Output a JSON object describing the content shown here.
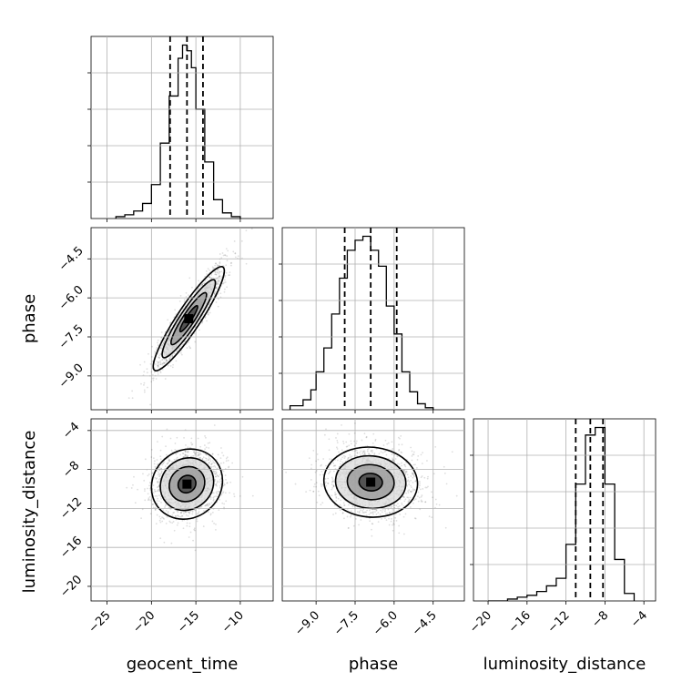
{
  "chart_data": {
    "type": "corner",
    "parameters": [
      "geocent_time",
      "phase",
      "luminosity_distance"
    ],
    "ranges": {
      "geocent_time": [
        -26.8,
        -6.3
      ],
      "phase": [
        -10.3,
        -3.3
      ],
      "luminosity_distance": [
        -21.5,
        -2.8
      ]
    },
    "ticks": {
      "geocent_time": {
        "values": [
          -25,
          -20,
          -15,
          -10
        ],
        "labels": [
          "−25",
          "−20",
          "−15",
          "−10"
        ]
      },
      "phase": {
        "values": [
          -9.0,
          -7.5,
          -6.0,
          -4.5
        ],
        "labels": [
          "−9.0",
          "−7.5",
          "−6.0",
          "−4.5"
        ]
      },
      "luminosity_distance": {
        "values": [
          -20,
          -16,
          -12,
          -8,
          -4
        ],
        "labels": [
          "−20",
          "−16",
          "−12",
          "−8",
          "−4"
        ]
      }
    },
    "histograms": {
      "geocent_time": {
        "bin_edges": [
          -24.0,
          -23.0,
          -22.0,
          -21.0,
          -20.0,
          -19.0,
          -18.0,
          -17.0,
          -16.5,
          -16.0,
          -15.5,
          -15.0,
          -14.0,
          -13.0,
          -12.0,
          -11.0,
          -10.0
        ],
        "counts": [
          1,
          2,
          4,
          8,
          18,
          40,
          65,
          85,
          92,
          89,
          80,
          58,
          30,
          10,
          3,
          1
        ],
        "quantiles": [
          -17.9,
          -16.0,
          -14.2
        ]
      },
      "phase": {
        "bin_edges": [
          -10.0,
          -9.5,
          -9.2,
          -9.0,
          -8.7,
          -8.4,
          -8.1,
          -7.8,
          -7.5,
          -7.2,
          -6.9,
          -6.6,
          -6.3,
          -6.0,
          -5.7,
          -5.4,
          -5.1,
          -4.8,
          -4.5
        ],
        "counts": [
          2,
          5,
          10,
          19,
          31,
          48,
          66,
          80,
          85,
          87,
          80,
          72,
          52,
          38,
          19,
          9,
          3,
          1
        ],
        "quantiles": [
          -7.9,
          -6.9,
          -5.9
        ]
      },
      "luminosity_distance": {
        "bin_edges": [
          -20.0,
          -18.0,
          -17.0,
          -16.0,
          -15.0,
          -14.0,
          -13.0,
          -12.0,
          -11.0,
          -10.0,
          -9.0,
          -8.0,
          -7.0,
          -6.0,
          -5.0
        ],
        "counts": [
          0,
          1,
          2,
          3,
          5,
          8,
          12,
          30,
          62,
          88,
          92,
          62,
          22,
          4
        ],
        "quantiles": [
          -11.0,
          -9.5,
          -8.2
        ]
      }
    },
    "pairs": [
      {
        "x": "geocent_time",
        "y": "phase",
        "mean": [
          -15.8,
          -6.8
        ],
        "sigma": [
          2.0,
          1.0
        ],
        "correlation": 0.92
      },
      {
        "x": "geocent_time",
        "y": "luminosity_distance",
        "mean": [
          -16.0,
          -9.5
        ],
        "sigma": [
          2.0,
          1.8
        ],
        "correlation": 0.1
      },
      {
        "x": "phase",
        "y": "luminosity_distance",
        "mean": [
          -6.9,
          -9.3
        ],
        "sigma": [
          0.9,
          1.8
        ],
        "correlation": -0.05
      }
    ],
    "grid": true,
    "legend": "none"
  }
}
